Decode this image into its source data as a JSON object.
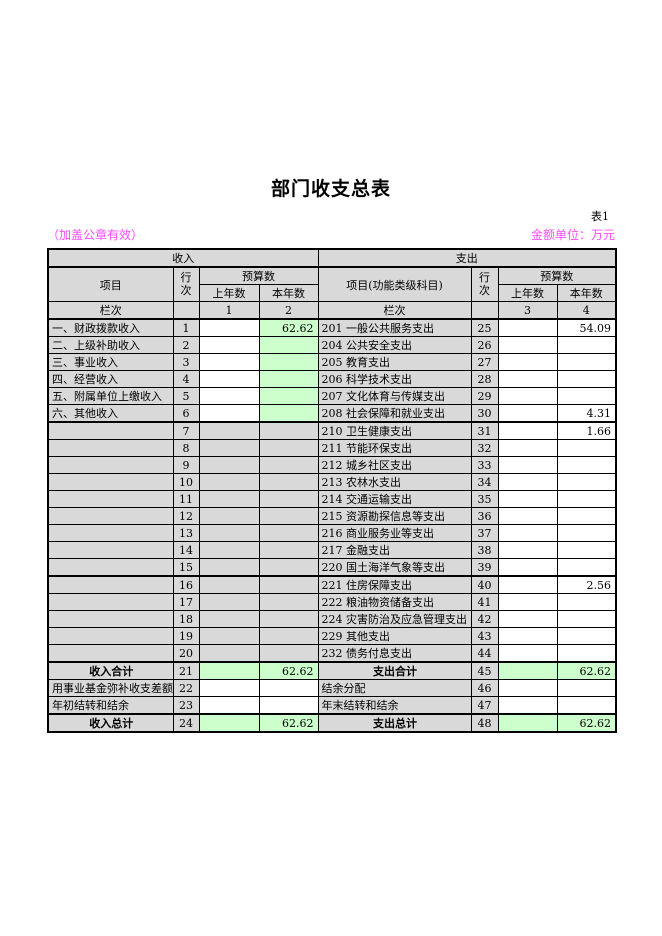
{
  "page": {
    "title": "部门收支总表",
    "table_no": "表1",
    "stamp_note": "（加盖公章有效）",
    "unit_note": "金额单位：万元"
  },
  "colors": {
    "accent_pink": "#ff4bff",
    "cell_gray": "#d9d9d9",
    "cell_green": "#ccffcc"
  },
  "table": {
    "income_header": "收入",
    "expense_header": "支出",
    "col_item": "项目",
    "col_row_no": "行次",
    "col_budget": "预算数",
    "col_last_year": "上年数",
    "col_this_year": "本年数",
    "col_item_expense": "项目(功能类级科目)",
    "lanci_left": "栏次",
    "lanci_right": "栏次",
    "col_indexes": [
      "1",
      "2",
      "3",
      "4"
    ],
    "rows": [
      {
        "kind": "k1",
        "thick_bottom": false,
        "left": {
          "item": "一、财政拨款收入",
          "no": "1",
          "prev": "",
          "cur": "62.62"
        },
        "right": {
          "item": "201 一般公共服务支出",
          "no": "25",
          "prev": "",
          "cur": "54.09"
        }
      },
      {
        "kind": "k1",
        "thick_bottom": false,
        "left": {
          "item": "二、上级补助收入",
          "no": "2",
          "prev": "",
          "cur": ""
        },
        "right": {
          "item": "204 公共安全支出",
          "no": "26",
          "prev": "",
          "cur": ""
        }
      },
      {
        "kind": "k1",
        "thick_bottom": false,
        "left": {
          "item": "三、事业收入",
          "no": "3",
          "prev": "",
          "cur": ""
        },
        "right": {
          "item": "205 教育支出",
          "no": "27",
          "prev": "",
          "cur": ""
        }
      },
      {
        "kind": "k1",
        "thick_bottom": false,
        "left": {
          "item": "四、经营收入",
          "no": "4",
          "prev": "",
          "cur": ""
        },
        "right": {
          "item": "206 科学技术支出",
          "no": "28",
          "prev": "",
          "cur": ""
        }
      },
      {
        "kind": "k1",
        "thick_bottom": false,
        "left": {
          "item": "五、附属单位上缴收入",
          "no": "5",
          "prev": "",
          "cur": ""
        },
        "right": {
          "item": "207 文化体育与传媒支出",
          "no": "29",
          "prev": "",
          "cur": ""
        }
      },
      {
        "kind": "k1",
        "thick_bottom": true,
        "left": {
          "item": "六、其他收入",
          "no": "6",
          "prev": "",
          "cur": ""
        },
        "right": {
          "item": "208 社会保障和就业支出",
          "no": "30",
          "prev": "",
          "cur": "4.31"
        }
      },
      {
        "kind": "k2",
        "thick_bottom": false,
        "left": {
          "item": "",
          "no": "7",
          "prev": "",
          "cur": ""
        },
        "right": {
          "item": "210 卫生健康支出",
          "no": "31",
          "prev": "",
          "cur": "1.66"
        }
      },
      {
        "kind": "k2",
        "thick_bottom": false,
        "left": {
          "item": "",
          "no": "8",
          "prev": "",
          "cur": ""
        },
        "right": {
          "item": "211 节能环保支出",
          "no": "32",
          "prev": "",
          "cur": ""
        }
      },
      {
        "kind": "k2",
        "thick_bottom": false,
        "left": {
          "item": "",
          "no": "9",
          "prev": "",
          "cur": ""
        },
        "right": {
          "item": "212 城乡社区支出",
          "no": "33",
          "prev": "",
          "cur": ""
        }
      },
      {
        "kind": "k2",
        "thick_bottom": false,
        "left": {
          "item": "",
          "no": "10",
          "prev": "",
          "cur": ""
        },
        "right": {
          "item": "213 农林水支出",
          "no": "34",
          "prev": "",
          "cur": ""
        }
      },
      {
        "kind": "k2",
        "thick_bottom": false,
        "left": {
          "item": "",
          "no": "11",
          "prev": "",
          "cur": ""
        },
        "right": {
          "item": "214 交通运输支出",
          "no": "35",
          "prev": "",
          "cur": ""
        }
      },
      {
        "kind": "k2",
        "thick_bottom": false,
        "left": {
          "item": "",
          "no": "12",
          "prev": "",
          "cur": ""
        },
        "right": {
          "item": "215 资源勘探信息等支出",
          "no": "36",
          "prev": "",
          "cur": ""
        }
      },
      {
        "kind": "k2",
        "thick_bottom": false,
        "left": {
          "item": "",
          "no": "13",
          "prev": "",
          "cur": ""
        },
        "right": {
          "item": "216 商业服务业等支出",
          "no": "37",
          "prev": "",
          "cur": ""
        }
      },
      {
        "kind": "k2",
        "thick_bottom": false,
        "left": {
          "item": "",
          "no": "14",
          "prev": "",
          "cur": ""
        },
        "right": {
          "item": "217 金融支出",
          "no": "38",
          "prev": "",
          "cur": ""
        }
      },
      {
        "kind": "k2",
        "thick_bottom": true,
        "left": {
          "item": "",
          "no": "15",
          "prev": "",
          "cur": ""
        },
        "right": {
          "item": "220 国土海洋气象等支出",
          "no": "39",
          "prev": "",
          "cur": ""
        }
      },
      {
        "kind": "k2",
        "thick_bottom": false,
        "left": {
          "item": "",
          "no": "16",
          "prev": "",
          "cur": ""
        },
        "right": {
          "item": "221 住房保障支出",
          "no": "40",
          "prev": "",
          "cur": "2.56"
        }
      },
      {
        "kind": "k2",
        "thick_bottom": false,
        "left": {
          "item": "",
          "no": "17",
          "prev": "",
          "cur": ""
        },
        "right": {
          "item": "222 粮油物资储备支出",
          "no": "41",
          "prev": "",
          "cur": ""
        }
      },
      {
        "kind": "k2",
        "thick_bottom": false,
        "left": {
          "item": "",
          "no": "18",
          "prev": "",
          "cur": ""
        },
        "right": {
          "item": "224 灾害防治及应急管理支出",
          "no": "42",
          "prev": "",
          "cur": ""
        }
      },
      {
        "kind": "k2",
        "thick_bottom": false,
        "left": {
          "item": "",
          "no": "19",
          "prev": "",
          "cur": ""
        },
        "right": {
          "item": "229 其他支出",
          "no": "43",
          "prev": "",
          "cur": ""
        }
      },
      {
        "kind": "k2",
        "thick_bottom": true,
        "left": {
          "item": "",
          "no": "20",
          "prev": "",
          "cur": ""
        },
        "right": {
          "item": "232 债务付息支出",
          "no": "44",
          "prev": "",
          "cur": ""
        }
      },
      {
        "kind": "total",
        "thick_bottom": false,
        "left": {
          "item": "收入合计",
          "no": "21",
          "prev": "",
          "cur": "62.62"
        },
        "right": {
          "item": "支出合计",
          "no": "45",
          "prev": "",
          "cur": "62.62"
        }
      },
      {
        "kind": "plain",
        "thick_bottom": false,
        "left": {
          "item": "用事业基金弥补收支差额",
          "no": "22",
          "prev": "",
          "cur": ""
        },
        "right": {
          "item": "结余分配",
          "no": "46",
          "prev": "",
          "cur": ""
        }
      },
      {
        "kind": "plain",
        "thick_bottom": true,
        "left": {
          "item": "年初结转和结余",
          "no": "23",
          "prev": "",
          "cur": ""
        },
        "right": {
          "item": "年末结转和结余",
          "no": "47",
          "prev": "",
          "cur": ""
        }
      },
      {
        "kind": "total",
        "thick_bottom": false,
        "left": {
          "item": "收入总计",
          "no": "24",
          "prev": "",
          "cur": "62.62"
        },
        "right": {
          "item": "支出总计",
          "no": "48",
          "prev": "",
          "cur": "62.62"
        }
      }
    ]
  }
}
